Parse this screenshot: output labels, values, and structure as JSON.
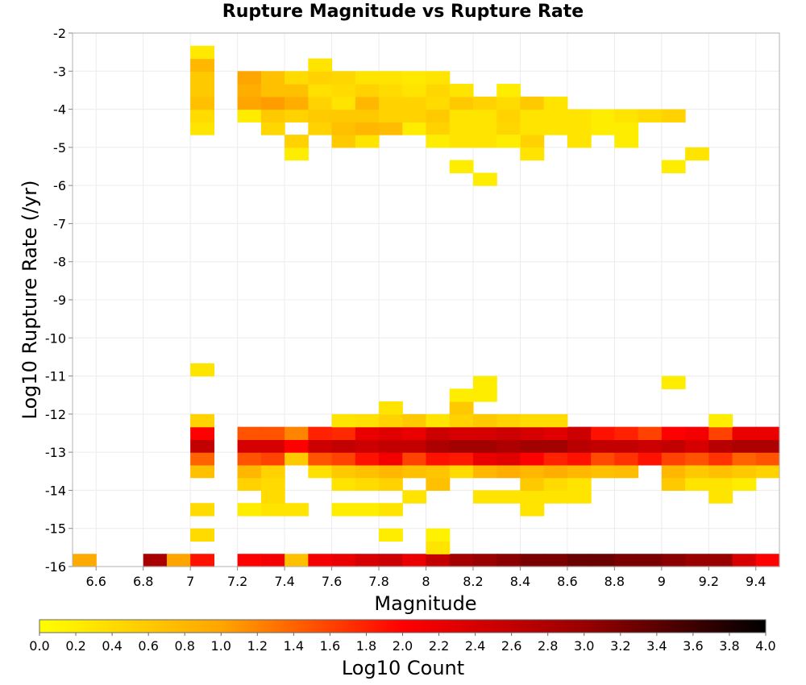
{
  "chart_data": {
    "type": "heatmap",
    "title": "Rupture Magnitude vs Rupture Rate",
    "xlabel": "Magnitude",
    "ylabel": "Log10 Rupture Rate (/yr)",
    "colorbar_label": "Log10 Count",
    "xlim": [
      6.5,
      9.5
    ],
    "ylim": [
      -16,
      -2
    ],
    "x_ticks": [
      6.6,
      6.8,
      7,
      7.2,
      7.4,
      7.6,
      7.8,
      8,
      8.2,
      8.4,
      8.6,
      8.8,
      9,
      9.2,
      9.4
    ],
    "x_tick_labels": [
      "6.6",
      "6.8",
      "7",
      "7.2",
      "7.4",
      "7.6",
      "7.8",
      "8",
      "8.2",
      "8.4",
      "8.6",
      "8.8",
      "9",
      "9.2",
      "9.4"
    ],
    "y_ticks": [
      -2,
      -3,
      -4,
      -5,
      -6,
      -7,
      -8,
      -9,
      -10,
      -11,
      -12,
      -13,
      -14,
      -15,
      -16
    ],
    "y_tick_labels": [
      "-2",
      "-3",
      "-4",
      "-5",
      "-6",
      "-7",
      "-8",
      "-9",
      "-10",
      "-11",
      "-12",
      "-13",
      "-14",
      "-15",
      "-16"
    ],
    "color_range": [
      0,
      4
    ],
    "colorbar_ticks": [
      "0.0",
      "0.2",
      "0.4",
      "0.6",
      "0.8",
      "1.0",
      "1.2",
      "1.4",
      "1.6",
      "1.8",
      "2.0",
      "2.2",
      "2.4",
      "2.6",
      "2.8",
      "3.0",
      "3.2",
      "3.4",
      "3.6",
      "3.8",
      "4.0"
    ],
    "colormap": [
      "#ffff00",
      "#ffa500",
      "#ff0000",
      "#990000",
      "#000000"
    ],
    "grid": true,
    "bin_width_x": 0.1,
    "bin_height_y": 0.3333,
    "cells": [
      [
        6.5,
        -16,
        0.95
      ],
      [
        6.8,
        -16,
        2.85
      ],
      [
        6.9,
        -16,
        1.0
      ],
      [
        7.0,
        -16,
        1.9
      ],
      [
        7.2,
        -16,
        2.0
      ],
      [
        7.3,
        -16,
        2.1
      ],
      [
        7.4,
        -16,
        0.7
      ],
      [
        7.5,
        -16,
        2.1
      ],
      [
        7.6,
        -16,
        2.2
      ],
      [
        7.7,
        -16,
        2.4
      ],
      [
        7.8,
        -16,
        2.5
      ],
      [
        7.9,
        -16,
        2.2
      ],
      [
        8.0,
        -16,
        2.6
      ],
      [
        8.1,
        -16,
        2.9
      ],
      [
        8.2,
        -16,
        3.0
      ],
      [
        8.3,
        -16,
        3.1
      ],
      [
        8.4,
        -16,
        3.2
      ],
      [
        8.5,
        -16,
        3.2
      ],
      [
        8.6,
        -16,
        3.3
      ],
      [
        8.7,
        -16,
        3.3
      ],
      [
        8.8,
        -16,
        3.2
      ],
      [
        8.9,
        -16,
        3.2
      ],
      [
        9.0,
        -16,
        3.1
      ],
      [
        9.1,
        -16,
        3.0
      ],
      [
        9.2,
        -16,
        3.0
      ],
      [
        9.3,
        -16,
        2.4
      ],
      [
        9.4,
        -16,
        2.0
      ],
      [
        8.0,
        -15.6667,
        0.3
      ],
      [
        7.0,
        -15.3333,
        0.4
      ],
      [
        7.8,
        -15.3333,
        0.2
      ],
      [
        8.0,
        -15.3333,
        0.15
      ],
      [
        7.0,
        -14.6667,
        0.4
      ],
      [
        7.2,
        -14.6667,
        0.2
      ],
      [
        7.3,
        -14.6667,
        0.3
      ],
      [
        7.4,
        -14.6667,
        0.3
      ],
      [
        7.6,
        -14.6667,
        0.2
      ],
      [
        7.7,
        -14.6667,
        0.2
      ],
      [
        7.8,
        -14.6667,
        0.3
      ],
      [
        8.4,
        -14.6667,
        0.3
      ],
      [
        7.3,
        -14.3333,
        0.4
      ],
      [
        7.9,
        -14.3333,
        0.3
      ],
      [
        8.2,
        -14.3333,
        0.3
      ],
      [
        8.3,
        -14.3333,
        0.3
      ],
      [
        8.4,
        -14.3333,
        0.3
      ],
      [
        8.5,
        -14.3333,
        0.3
      ],
      [
        8.6,
        -14.3333,
        0.3
      ],
      [
        9.2,
        -14.3333,
        0.3
      ],
      [
        7.2,
        -14,
        0.5
      ],
      [
        7.3,
        -14,
        0.4
      ],
      [
        7.6,
        -14,
        0.3
      ],
      [
        7.7,
        -14,
        0.4
      ],
      [
        7.8,
        -14,
        0.5
      ],
      [
        8.0,
        -14,
        0.7
      ],
      [
        8.4,
        -14,
        0.6
      ],
      [
        8.5,
        -14,
        0.4
      ],
      [
        8.6,
        -14,
        0.3
      ],
      [
        9.0,
        -14,
        0.6
      ],
      [
        9.1,
        -14,
        0.3
      ],
      [
        9.2,
        -14,
        0.3
      ],
      [
        9.3,
        -14,
        0.2
      ],
      [
        7.0,
        -13.6667,
        0.7
      ],
      [
        7.2,
        -13.6667,
        0.8
      ],
      [
        7.3,
        -13.6667,
        0.5
      ],
      [
        7.5,
        -13.6667,
        0.35
      ],
      [
        7.6,
        -13.6667,
        0.6
      ],
      [
        7.7,
        -13.6667,
        0.7
      ],
      [
        7.8,
        -13.6667,
        0.8
      ],
      [
        7.9,
        -13.6667,
        0.7
      ],
      [
        8.0,
        -13.6667,
        0.65
      ],
      [
        8.1,
        -13.6667,
        0.4
      ],
      [
        8.2,
        -13.6667,
        0.8
      ],
      [
        8.3,
        -13.6667,
        0.9
      ],
      [
        8.4,
        -13.6667,
        0.8
      ],
      [
        8.5,
        -13.6667,
        0.9
      ],
      [
        8.6,
        -13.6667,
        0.8
      ],
      [
        8.7,
        -13.6667,
        0.7
      ],
      [
        8.8,
        -13.6667,
        0.75
      ],
      [
        9.0,
        -13.6667,
        0.8
      ],
      [
        9.1,
        -13.6667,
        0.6
      ],
      [
        9.2,
        -13.6667,
        0.7
      ],
      [
        9.3,
        -13.6667,
        0.6
      ],
      [
        9.4,
        -13.6667,
        0.5
      ],
      [
        7.0,
        -13.3333,
        1.4
      ],
      [
        7.2,
        -13.3333,
        1.5
      ],
      [
        7.3,
        -13.3333,
        1.6
      ],
      [
        7.4,
        -13.3333,
        0.6
      ],
      [
        7.5,
        -13.3333,
        1.5
      ],
      [
        7.6,
        -13.3333,
        1.6
      ],
      [
        7.7,
        -13.3333,
        1.9
      ],
      [
        7.8,
        -13.3333,
        2.1
      ],
      [
        7.9,
        -13.3333,
        1.6
      ],
      [
        8.0,
        -13.3333,
        1.9
      ],
      [
        8.1,
        -13.3333,
        1.85
      ],
      [
        8.2,
        -13.3333,
        2.2
      ],
      [
        8.3,
        -13.3333,
        2.3
      ],
      [
        8.4,
        -13.3333,
        2.0
      ],
      [
        8.5,
        -13.3333,
        1.8
      ],
      [
        8.6,
        -13.3333,
        1.9
      ],
      [
        8.7,
        -13.3333,
        1.55
      ],
      [
        8.8,
        -13.3333,
        1.7
      ],
      [
        8.9,
        -13.3333,
        1.9
      ],
      [
        9.0,
        -13.3333,
        1.6
      ],
      [
        9.1,
        -13.3333,
        1.5
      ],
      [
        9.2,
        -13.3333,
        1.7
      ],
      [
        9.3,
        -13.3333,
        1.4
      ],
      [
        9.4,
        -13.3333,
        1.5
      ],
      [
        7.0,
        -13,
        2.6
      ],
      [
        7.2,
        -13,
        2.4
      ],
      [
        7.3,
        -13,
        2.4
      ],
      [
        7.4,
        -13,
        2.0
      ],
      [
        7.5,
        -13,
        2.5
      ],
      [
        7.6,
        -13,
        2.6
      ],
      [
        7.7,
        -13,
        2.5
      ],
      [
        7.8,
        -13,
        2.6
      ],
      [
        7.9,
        -13,
        2.6
      ],
      [
        8.0,
        -13,
        2.8
      ],
      [
        8.1,
        -13,
        2.9
      ],
      [
        8.2,
        -13,
        2.9
      ],
      [
        8.3,
        -13,
        2.8
      ],
      [
        8.4,
        -13,
        2.9
      ],
      [
        8.5,
        -13,
        2.9
      ],
      [
        8.6,
        -13,
        2.7
      ],
      [
        8.7,
        -13,
        2.6
      ],
      [
        8.8,
        -13,
        2.6
      ],
      [
        8.9,
        -13,
        2.5
      ],
      [
        9.0,
        -13,
        2.6
      ],
      [
        9.1,
        -13,
        2.4
      ],
      [
        9.2,
        -13,
        2.7
      ],
      [
        9.3,
        -13,
        2.8
      ],
      [
        9.4,
        -13,
        2.8
      ],
      [
        7.0,
        -12.6667,
        2.0
      ],
      [
        7.2,
        -12.6667,
        1.5
      ],
      [
        7.3,
        -12.6667,
        1.5
      ],
      [
        7.4,
        -12.6667,
        1.2
      ],
      [
        7.5,
        -12.6667,
        1.8
      ],
      [
        7.6,
        -12.6667,
        1.75
      ],
      [
        7.7,
        -12.6667,
        2.2
      ],
      [
        7.8,
        -12.6667,
        2.3
      ],
      [
        7.9,
        -12.6667,
        2.2
      ],
      [
        8.0,
        -12.6667,
        2.5
      ],
      [
        8.1,
        -12.6667,
        2.4
      ],
      [
        8.2,
        -12.6667,
        2.4
      ],
      [
        8.3,
        -12.6667,
        2.5
      ],
      [
        8.4,
        -12.6667,
        2.4
      ],
      [
        8.5,
        -12.6667,
        2.3
      ],
      [
        8.6,
        -12.6667,
        2.5
      ],
      [
        8.7,
        -12.6667,
        1.9
      ],
      [
        8.8,
        -12.6667,
        1.8
      ],
      [
        8.9,
        -12.6667,
        1.6
      ],
      [
        9.0,
        -12.6667,
        2.0
      ],
      [
        9.1,
        -12.6667,
        2.1
      ],
      [
        9.2,
        -12.6667,
        1.6
      ],
      [
        9.3,
        -12.6667,
        2.2
      ],
      [
        9.4,
        -12.6667,
        2.2
      ],
      [
        7.6,
        -12.3333,
        0.3
      ],
      [
        7.7,
        -12.3333,
        0.35
      ],
      [
        7.8,
        -12.3333,
        0.5
      ],
      [
        7.9,
        -12.3333,
        0.6
      ],
      [
        8.0,
        -12.3333,
        0.3
      ],
      [
        8.1,
        -12.3333,
        0.5
      ],
      [
        8.2,
        -12.3333,
        0.6
      ],
      [
        8.3,
        -12.3333,
        0.5
      ],
      [
        8.4,
        -12.3333,
        0.4
      ],
      [
        8.5,
        -12.3333,
        0.4
      ],
      [
        9.2,
        -12.3333,
        0.2
      ],
      [
        7.0,
        -12.3333,
        0.5
      ],
      [
        7.8,
        -12,
        0.3
      ],
      [
        8.1,
        -12,
        0.6
      ],
      [
        8.1,
        -11.6667,
        0.2
      ],
      [
        8.2,
        -11.6667,
        0.2
      ],
      [
        8.2,
        -11.3333,
        0.2
      ],
      [
        9.0,
        -11.3333,
        0.2
      ],
      [
        7.0,
        -11,
        0.3
      ],
      [
        8.2,
        -6,
        0.2
      ],
      [
        8.1,
        -5.6667,
        0.2
      ],
      [
        9.0,
        -5.6667,
        0.2
      ],
      [
        9.1,
        -5.3333,
        0.3
      ],
      [
        7.4,
        -5.3333,
        0.2
      ],
      [
        7.4,
        -5,
        0.5
      ],
      [
        7.6,
        -5,
        0.6
      ],
      [
        7.7,
        -5,
        0.3
      ],
      [
        8.2,
        -5,
        0.3
      ],
      [
        8.4,
        -5,
        0.5
      ],
      [
        8.6,
        -5,
        0.3
      ],
      [
        8.4,
        -5.3333,
        0.3
      ],
      [
        7.0,
        -4.6667,
        0.3
      ],
      [
        7.3,
        -4.6667,
        0.45
      ],
      [
        7.5,
        -4.6667,
        0.5
      ],
      [
        7.6,
        -4.6667,
        0.7
      ],
      [
        7.7,
        -4.6667,
        0.8
      ],
      [
        7.8,
        -4.6667,
        0.75
      ],
      [
        7.9,
        -4.6667,
        0.2
      ],
      [
        8.0,
        -4.6667,
        0.5
      ],
      [
        8.1,
        -4.6667,
        0.3
      ],
      [
        8.2,
        -4.6667,
        0.3
      ],
      [
        8.3,
        -4.6667,
        0.45
      ],
      [
        8.4,
        -4.6667,
        0.3
      ],
      [
        8.5,
        -4.6667,
        0.3
      ],
      [
        8.6,
        -4.6667,
        0.3
      ],
      [
        8.7,
        -4.6667,
        0.2
      ],
      [
        8.8,
        -4.6667,
        0.2
      ],
      [
        8.0,
        -5,
        0.2
      ],
      [
        8.1,
        -5,
        0.3
      ],
      [
        8.3,
        -5,
        0.2
      ],
      [
        8.8,
        -5,
        0.2
      ],
      [
        7.0,
        -4.3333,
        0.4
      ],
      [
        7.2,
        -4.3333,
        0.2
      ],
      [
        7.3,
        -4.3333,
        0.6
      ],
      [
        7.4,
        -4.3333,
        0.5
      ],
      [
        7.5,
        -4.3333,
        0.6
      ],
      [
        7.6,
        -4.3333,
        0.6
      ],
      [
        7.7,
        -4.3333,
        0.6
      ],
      [
        7.8,
        -4.3333,
        0.5
      ],
      [
        7.9,
        -4.3333,
        0.5
      ],
      [
        8.0,
        -4.3333,
        0.6
      ],
      [
        8.1,
        -4.3333,
        0.3
      ],
      [
        8.2,
        -4.3333,
        0.3
      ],
      [
        8.3,
        -4.3333,
        0.5
      ],
      [
        8.4,
        -4.3333,
        0.3
      ],
      [
        8.5,
        -4.3333,
        0.3
      ],
      [
        8.6,
        -4.3333,
        0.3
      ],
      [
        8.7,
        -4.3333,
        0.2
      ],
      [
        8.8,
        -4.3333,
        0.3
      ],
      [
        8.9,
        -4.3333,
        0.4
      ],
      [
        9.0,
        -4.3333,
        0.5
      ],
      [
        7.0,
        -4,
        0.7
      ],
      [
        7.2,
        -4,
        1.0
      ],
      [
        7.3,
        -4,
        1.05
      ],
      [
        7.4,
        -4,
        0.9
      ],
      [
        7.5,
        -4,
        0.5
      ],
      [
        7.6,
        -4,
        0.3
      ],
      [
        7.7,
        -4,
        0.8
      ],
      [
        7.8,
        -4,
        0.5
      ],
      [
        7.9,
        -4,
        0.5
      ],
      [
        8.0,
        -4,
        0.4
      ],
      [
        8.1,
        -4,
        0.6
      ],
      [
        8.2,
        -4,
        0.5
      ],
      [
        8.3,
        -4,
        0.4
      ],
      [
        8.4,
        -4,
        0.6
      ],
      [
        8.5,
        -4,
        0.3
      ],
      [
        7.0,
        -3.6667,
        0.6
      ],
      [
        7.2,
        -3.6667,
        0.9
      ],
      [
        7.3,
        -3.6667,
        0.7
      ],
      [
        7.4,
        -3.6667,
        0.7
      ],
      [
        7.5,
        -3.6667,
        0.35
      ],
      [
        7.6,
        -3.6667,
        0.4
      ],
      [
        7.7,
        -3.6667,
        0.5
      ],
      [
        7.8,
        -3.6667,
        0.4
      ],
      [
        7.9,
        -3.6667,
        0.3
      ],
      [
        8.0,
        -3.6667,
        0.45
      ],
      [
        8.1,
        -3.6667,
        0.3
      ],
      [
        8.3,
        -3.6667,
        0.2
      ],
      [
        7.0,
        -3.3333,
        0.6
      ],
      [
        7.2,
        -3.3333,
        1.0
      ],
      [
        7.3,
        -3.3333,
        0.7
      ],
      [
        7.4,
        -3.3333,
        0.4
      ],
      [
        7.5,
        -3.3333,
        0.5
      ],
      [
        7.6,
        -3.3333,
        0.45
      ],
      [
        7.7,
        -3.3333,
        0.3
      ],
      [
        7.8,
        -3.3333,
        0.3
      ],
      [
        7.9,
        -3.3333,
        0.25
      ],
      [
        8.0,
        -3.3333,
        0.3
      ],
      [
        7.0,
        -3,
        0.8
      ],
      [
        7.5,
        -3,
        0.3
      ],
      [
        7.0,
        -2.6667,
        0.25
      ]
    ]
  }
}
